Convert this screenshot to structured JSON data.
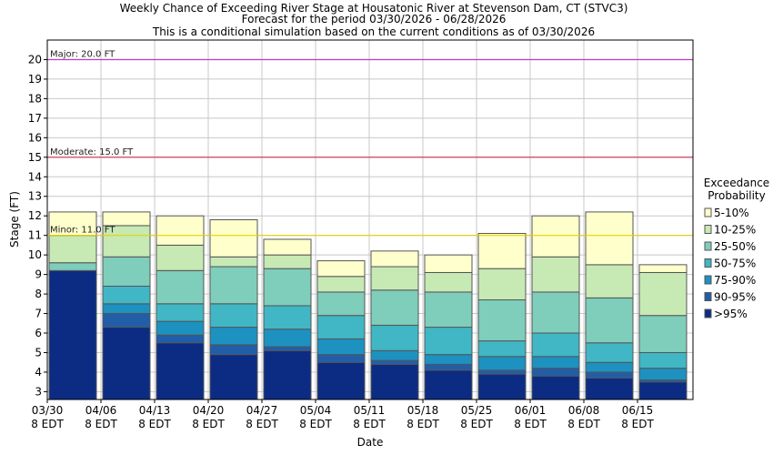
{
  "chart_data": {
    "type": "bar",
    "title_lines": [
      "Weekly Chance of Exceeding River Stage at Housatonic River at Stevenson Dam, CT (STVC3)",
      "Forecast for the period 03/30/2026 - 06/28/2026",
      "This is a conditional simulation based on the current conditions as of 03/30/2026"
    ],
    "xlabel": "Date",
    "ylabel": "Stage (FT)",
    "ylim": [
      2.6,
      21.0
    ],
    "yticks": [
      3,
      4,
      5,
      6,
      7,
      8,
      9,
      10,
      11,
      12,
      13,
      14,
      15,
      16,
      17,
      18,
      19,
      20
    ],
    "grid": true,
    "x_ticks": [
      {
        "line1": "03/30",
        "line2": "8 EDT"
      },
      {
        "line1": "04/06",
        "line2": "8 EDT"
      },
      {
        "line1": "04/13",
        "line2": "8 EDT"
      },
      {
        "line1": "04/20",
        "line2": "8 EDT"
      },
      {
        "line1": "04/27",
        "line2": "8 EDT"
      },
      {
        "line1": "05/04",
        "line2": "8 EDT"
      },
      {
        "line1": "05/11",
        "line2": "8 EDT"
      },
      {
        "line1": "05/18",
        "line2": "8 EDT"
      },
      {
        "line1": "05/25",
        "line2": "8 EDT"
      },
      {
        "line1": "06/01",
        "line2": "8 EDT"
      },
      {
        "line1": "06/08",
        "line2": "8 EDT"
      },
      {
        "line1": "06/15",
        "line2": "8 EDT"
      }
    ],
    "flood_levels": [
      {
        "label": "Major: 20.0 FT",
        "value": 20.0,
        "color": "#cc33cc"
      },
      {
        "label": "Moderate: 15.0 FT",
        "value": 15.0,
        "color": "#cc3355"
      },
      {
        "label": "Minor: 11.0 FT",
        "value": 11.0,
        "color": "#e6d200"
      }
    ],
    "legend": {
      "title_line1": "Exceedance",
      "title_line2": "Probability",
      "placement": "right"
    },
    "series": [
      {
        "name": "5-10%",
        "color": "#ffffcc"
      },
      {
        "name": "10-25%",
        "color": "#c7e9b4"
      },
      {
        "name": "25-50%",
        "color": "#7fcdbb"
      },
      {
        "name": "50-75%",
        "color": "#41b6c4"
      },
      {
        "name": "75-90%",
        "color": "#1d91c0"
      },
      {
        "name": "90-95%",
        "color": "#225ea8"
      },
      {
        "name": ">95%",
        "color": "#0c2c84"
      }
    ],
    "weeks": [
      {
        "week": "03/30",
        "bounds": [
          9.2,
          9.2,
          9.2,
          9.2,
          9.6,
          11.0,
          12.2
        ]
      },
      {
        "week": "04/06",
        "bounds": [
          6.3,
          7.0,
          7.5,
          8.4,
          9.9,
          11.5,
          12.2
        ]
      },
      {
        "week": "04/13",
        "bounds": [
          5.5,
          5.9,
          6.6,
          7.5,
          9.2,
          10.5,
          12.0
        ]
      },
      {
        "week": "04/20",
        "bounds": [
          4.9,
          5.4,
          6.3,
          7.5,
          9.4,
          9.9,
          11.8
        ]
      },
      {
        "week": "04/27",
        "bounds": [
          5.1,
          5.3,
          6.2,
          7.4,
          9.3,
          10.0,
          10.8
        ]
      },
      {
        "week": "05/04",
        "bounds": [
          4.5,
          4.9,
          5.7,
          6.9,
          8.1,
          8.9,
          9.7
        ]
      },
      {
        "week": "05/11",
        "bounds": [
          4.4,
          4.6,
          5.1,
          6.4,
          8.2,
          9.4,
          10.2
        ]
      },
      {
        "week": "05/18",
        "bounds": [
          4.1,
          4.4,
          4.9,
          6.3,
          8.1,
          9.1,
          10.0
        ]
      },
      {
        "week": "05/25",
        "bounds": [
          3.9,
          4.1,
          4.8,
          5.6,
          7.7,
          9.3,
          11.1
        ]
      },
      {
        "week": "06/01",
        "bounds": [
          3.8,
          4.2,
          4.8,
          6.0,
          8.1,
          9.9,
          12.0
        ]
      },
      {
        "week": "06/08",
        "bounds": [
          3.7,
          4.0,
          4.5,
          5.5,
          7.8,
          9.5,
          12.2
        ]
      },
      {
        "week": "06/15",
        "bounds": [
          3.5,
          3.6,
          4.2,
          5.0,
          6.9,
          9.1,
          9.5
        ]
      }
    ]
  }
}
